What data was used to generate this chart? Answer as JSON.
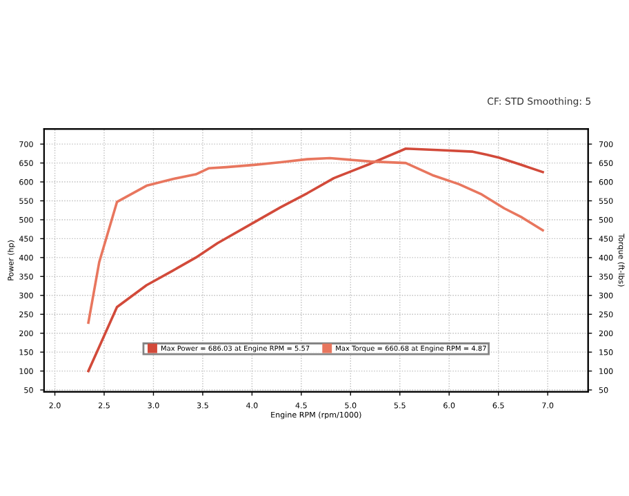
{
  "chart_data": {
    "type": "line",
    "xlabel": "Engine RPM (rpm/1000)",
    "ylabel": "Power (hp)",
    "y2label": "Torque (ft-lbs)",
    "annotations": [
      "CF: STD Smoothing: 5"
    ],
    "series": [
      {
        "name": "Max Power = 686.03 at Engine RPM = 5.57",
        "color": "#d24a3a",
        "x": [
          2.34,
          2.63,
          2.93,
          3.2,
          3.43,
          3.65,
          4.02,
          4.29,
          4.56,
          4.83,
          5.2,
          5.56,
          5.92,
          6.24,
          6.38,
          6.51,
          6.7,
          6.95
        ],
        "values": [
          100,
          269,
          327,
          366,
          400,
          438,
          493,
          533,
          570,
          610,
          648,
          688,
          684,
          680,
          672,
          664,
          648,
          626
        ]
      },
      {
        "name": "Max Torque = 660.68 at Engine RPM = 4.87",
        "color": "#e8765e",
        "x": [
          2.34,
          2.45,
          2.63,
          2.93,
          3.2,
          3.43,
          3.56,
          3.74,
          4.02,
          4.29,
          4.56,
          4.79,
          5.2,
          5.56,
          5.83,
          6.1,
          6.33,
          6.56,
          6.74,
          6.95
        ],
        "values": [
          228,
          388,
          547,
          590,
          608,
          620,
          636,
          639,
          645,
          652,
          660,
          663,
          654,
          650,
          618,
          594,
          567,
          530,
          506,
          472
        ]
      }
    ],
    "xlim": [
      1.89,
      7.41
    ],
    "ylim": [
      45,
      740
    ],
    "y2lim": [
      45,
      740
    ],
    "xticks": [
      {
        "value": 2,
        "label": "2.0"
      },
      2.5,
      {
        "value": 3,
        "label": "3.0"
      },
      3.5,
      {
        "value": 4,
        "label": "4.0"
      },
      4.5,
      {
        "value": 5,
        "label": "5.0"
      },
      5.5,
      {
        "value": 6,
        "label": "6.0"
      },
      6.5,
      {
        "value": 7,
        "label": "7.0"
      }
    ],
    "yticks": [
      50,
      100,
      150,
      200,
      250,
      300,
      350,
      400,
      450,
      500,
      550,
      600,
      650,
      700
    ],
    "y2ticks": [
      50,
      100,
      150,
      200,
      250,
      300,
      350,
      400,
      450,
      500,
      550,
      600,
      650,
      700
    ],
    "grid": true,
    "legend": "bottom",
    "marker": "none",
    "line_style": "solid"
  }
}
